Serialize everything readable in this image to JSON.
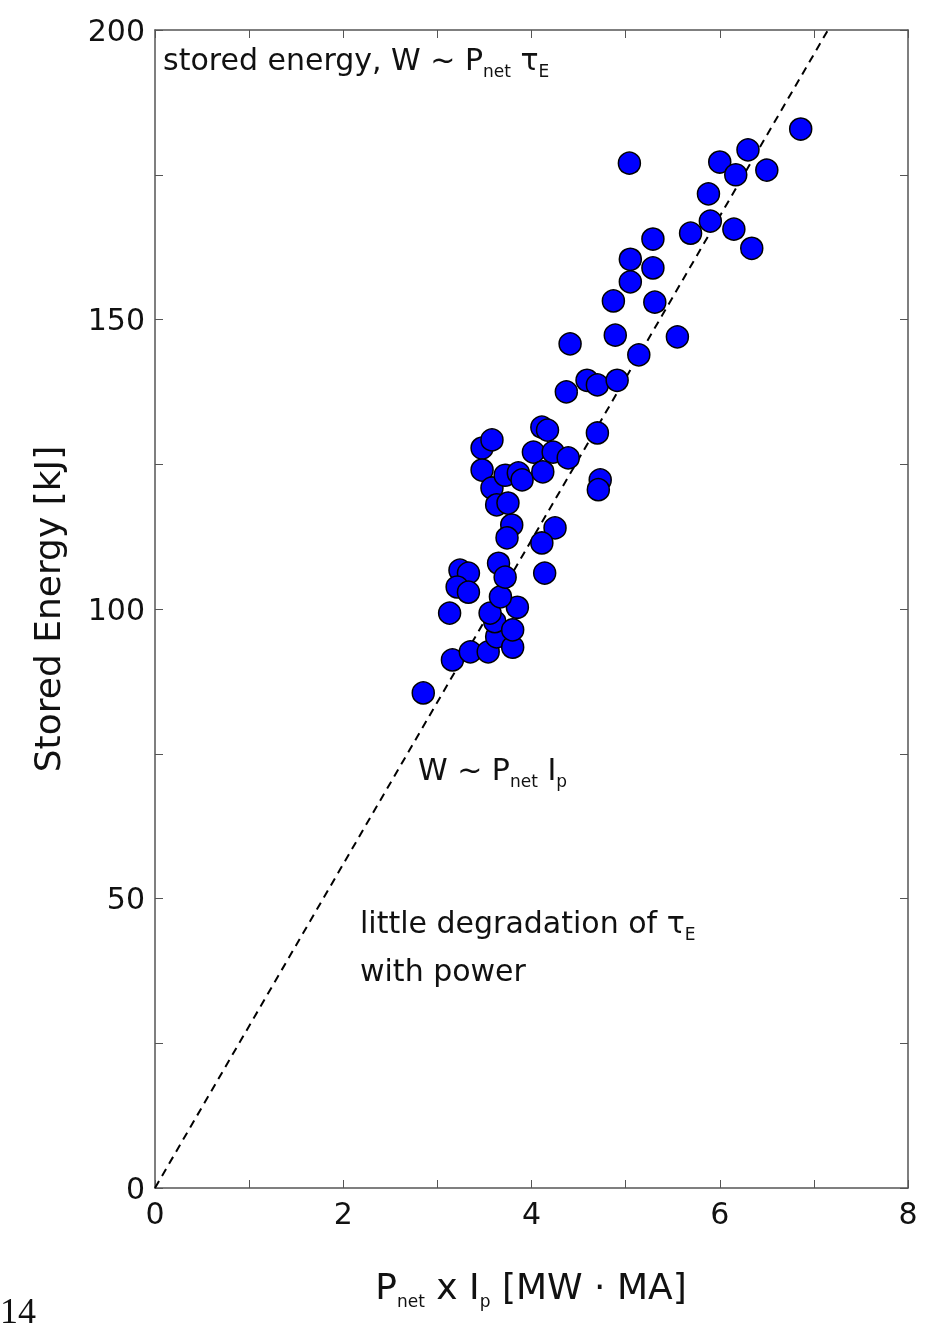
{
  "chart_data": {
    "type": "scatter",
    "xlabel": "P$_{net}$ x I$_{p}$ [MW · MA]",
    "ylabel": "Stored Energy [kJ]",
    "annotations": [
      "stored energy, W ~ P$_{net}$ τ$_{E}$",
      "W ~ P$_{net}$ I$_{p}$",
      "little degradation of τ$_{E}$ with power",
      "14"
    ],
    "xlim": [
      0,
      8
    ],
    "ylim": [
      0,
      200
    ],
    "xticks": [
      0,
      {
        "value": 1,
        "label": null
      },
      2,
      {
        "value": 3,
        "label": null
      },
      4,
      {
        "value": 5,
        "label": null
      },
      6,
      {
        "value": 7,
        "label": null
      },
      8
    ],
    "yticks": [
      0,
      {
        "value": 25,
        "label": null
      },
      50,
      {
        "value": 75,
        "label": null
      },
      100,
      {
        "value": 125,
        "label": null
      },
      150,
      {
        "value": 175,
        "label": null
      },
      200
    ],
    "grid": false,
    "marker": "circle",
    "series": [
      {
        "color": "#0000ff",
        "x": [
          2.85,
          3.16,
          3.13,
          3.35,
          3.54,
          3.63,
          3.8,
          3.61,
          3.56,
          3.8,
          3.85,
          3.67,
          3.24,
          3.33,
          3.21,
          3.33,
          3.65,
          3.72,
          3.79,
          3.74,
          4.25,
          4.11,
          4.14,
          3.475,
          3.58,
          3.475,
          3.58,
          3.63,
          3.75,
          3.72,
          3.86,
          3.9,
          4.11,
          4.17,
          4.02,
          4.23,
          4.39,
          4.12,
          4.7,
          4.73,
          4.71,
          4.37,
          4.41,
          4.59,
          4.7,
          4.91,
          4.87,
          4.89,
          5.04,
          5.05,
          5.05,
          5.14,
          5.29,
          5.29,
          5.31,
          5.55,
          5.69,
          5.88,
          5.9,
          6.0,
          6.17,
          6.15,
          6.3,
          6.34,
          6.5,
          6.86
        ],
        "values": [
          85.5,
          91.2,
          99.3,
          92.6,
          92.6,
          95.2,
          93.4,
          97.8,
          99.3,
          96.4,
          100.3,
          102.1,
          106.7,
          106.2,
          103.8,
          102.9,
          107.9,
          105.5,
          114.5,
          112.3,
          114,
          111.4,
          106.2,
          127.8,
          129.2,
          124,
          120.9,
          118,
          118.3,
          123.1,
          123.5,
          122.3,
          131.4,
          130.9,
          127.1,
          127.1,
          126.1,
          123.7,
          130.4,
          122.3,
          120.6,
          137.5,
          145.8,
          139.5,
          138.7,
          139.5,
          153.2,
          147.3,
          177,
          160.4,
          156.5,
          143.9,
          163.9,
          158.9,
          153,
          147,
          164.9,
          171.7,
          167,
          177.2,
          175,
          165.6,
          179.3,
          162.3,
          175.8,
          182.9
        ]
      },
      {
        "type": "line",
        "color": "#000000",
        "line_style": "dashed",
        "marker": "none",
        "x": [
          0,
          7.15
        ],
        "values": [
          0,
          200
        ]
      }
    ]
  }
}
